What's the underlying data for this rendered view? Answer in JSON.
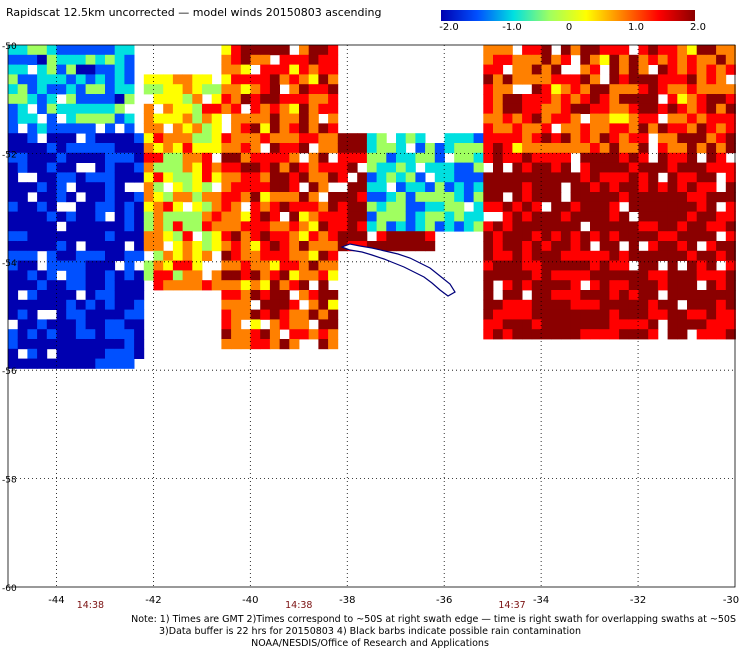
{
  "title": "Rapidscat 12.5km uncorrected — model winds 20150803 ascending",
  "colorbar": {
    "labels": [
      "-2.0",
      "-1.0",
      "0",
      "1.0",
      "2.0"
    ],
    "values": [
      -2.0,
      -1.0,
      0,
      1.0,
      2.0
    ],
    "colors": [
      "#0000b0",
      "#0050ff",
      "#00e0e0",
      "#a0ff60",
      "#ffff00",
      "#ff8000",
      "#ff0000",
      "#8b0000"
    ]
  },
  "map": {
    "lon_ticks": [
      "-44",
      "-42",
      "-40",
      "-38",
      "-36",
      "-34",
      "-32",
      "-30"
    ],
    "lon_values": [
      -44,
      -42,
      -40,
      -38,
      -36,
      -34,
      -32,
      -30
    ],
    "lat_ticks": [
      "-50",
      "-52",
      "-54",
      "-56",
      "-58",
      "-60"
    ],
    "lat_values": [
      -50,
      -52,
      -54,
      -56,
      -58,
      -60
    ],
    "lon_range": [
      -45,
      -30
    ],
    "lat_range": [
      -60,
      -50
    ],
    "grid": true,
    "land_color": "#00007a",
    "regions": [
      {
        "name": "strong-negative-west",
        "lon": [
          -45,
          -42.2
        ],
        "lat": [
          -55.8,
          -51.5
        ],
        "value": -2.0
      },
      {
        "name": "negative-northwest",
        "lon": [
          -45,
          -42.5
        ],
        "lat": [
          -51.5,
          -50
        ],
        "value": -1.0
      },
      {
        "name": "transition-west",
        "lon": [
          -42.2,
          -40.6
        ],
        "lat": [
          -54.5,
          -50.5
        ],
        "value": 0.5
      },
      {
        "name": "positive-central",
        "lon": [
          -40.6,
          -38.3
        ],
        "lat": [
          -55.5,
          -50
        ],
        "value": 1.3
      },
      {
        "name": "strong-positive-central",
        "lon": [
          -38.3,
          -36.3
        ],
        "lat": [
          -53.7,
          -51.6
        ],
        "value": 2.0
      },
      {
        "name": "negative-pocket-east",
        "lon": [
          -37.7,
          -35.3
        ],
        "lat": [
          -53.4,
          -51.5
        ],
        "value": -0.8
      },
      {
        "name": "strong-positive-east",
        "lon": [
          -35.3,
          -30
        ],
        "lat": [
          -55.3,
          -51.9
        ],
        "value": 2.0
      },
      {
        "name": "positive-northeast",
        "lon": [
          -35.3,
          -30
        ],
        "lat": [
          -51.9,
          -50
        ],
        "value": 1.3
      }
    ]
  },
  "times": [
    {
      "label": "14:38",
      "lon": -43.3
    },
    {
      "label": "14:38",
      "lon": -39.0
    },
    {
      "label": "14:37",
      "lon": -34.6
    }
  ],
  "notes": {
    "line1": "Note: 1) Times are GMT 2)Times correspond to ~50S at right swath edge — time is right swath for overlapping swaths at ~50S",
    "line2": "3)Data buffer is 22 hrs for 20150803 4) Black barbs indicate possible rain contamination",
    "line3": "NOAA/NESDIS/Office of Research and Applications"
  }
}
